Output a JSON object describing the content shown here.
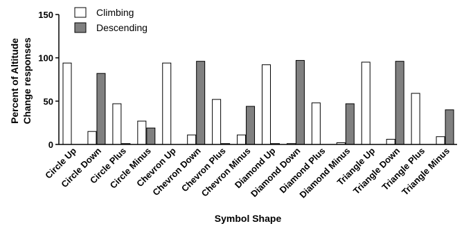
{
  "chart_data": {
    "type": "bar",
    "categories": [
      "Circle Up",
      "Circle Down",
      "Circle Plus",
      "Circle Minus",
      "Chevron Up",
      "Chevron Down",
      "Chevron Plus",
      "Chevron Minus",
      "Diamond Up",
      "Diamond Down",
      "Diamond Plus",
      "Diamond Minus",
      "Triangle Up",
      "Triangle Down",
      "Triangle Plus",
      "Triangle Minus"
    ],
    "series": [
      {
        "name": "Climbing",
        "color": "#ffffff",
        "values": [
          94,
          15,
          47,
          27,
          94,
          11,
          52,
          11,
          92,
          1,
          48,
          2,
          95,
          6,
          59,
          9
        ]
      },
      {
        "name": "Descending",
        "color": "#808080",
        "values": [
          0,
          82,
          1,
          19,
          0,
          96,
          1,
          44,
          1,
          97,
          0,
          47,
          0,
          96,
          0,
          40
        ]
      }
    ],
    "xlabel": "Symbol Shape",
    "ylabel_lines": [
      "Percent of Altitude",
      "Change responses"
    ],
    "ylim": [
      0,
      150
    ],
    "yticks": [
      "0",
      "50",
      "100",
      "150"
    ],
    "grid": false,
    "legend_position": "top-left"
  }
}
